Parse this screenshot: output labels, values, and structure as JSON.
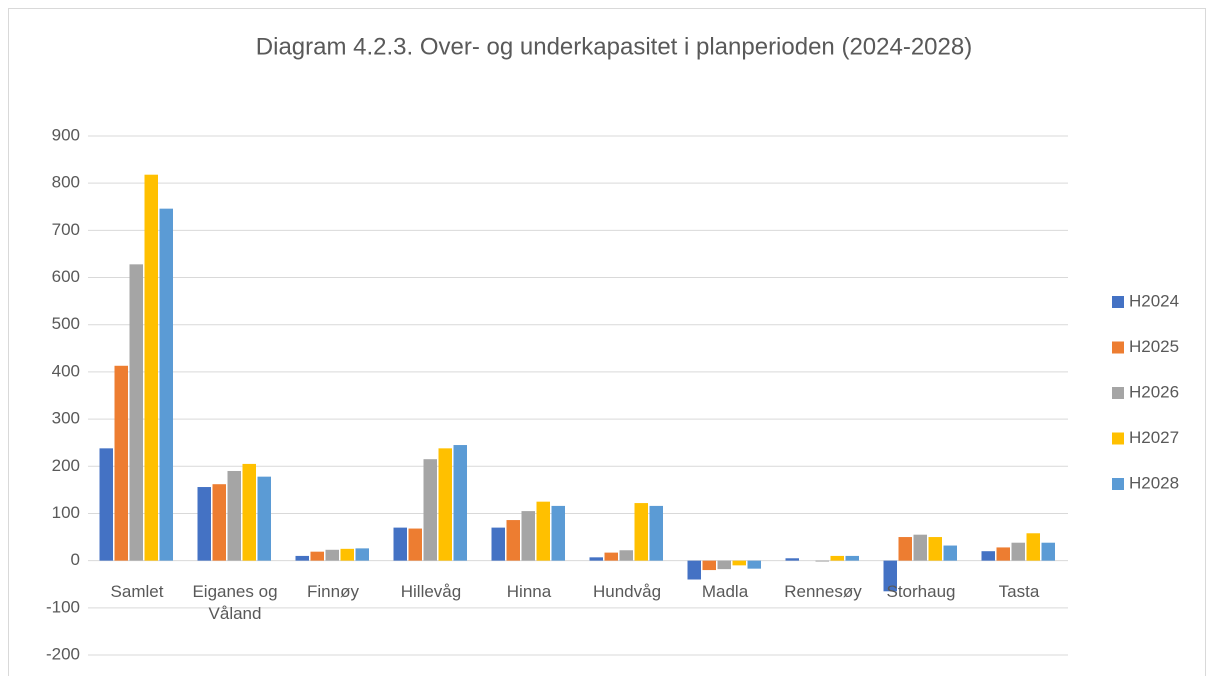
{
  "chart_data": {
    "type": "bar",
    "title": "Diagram 4.2.3. Over- og underkapasitet i planperioden (2024-2028)",
    "categories": [
      "Samlet",
      "Eiganes og Våland",
      "Finnøy",
      "Hillevåg",
      "Hinna",
      "Hundvåg",
      "Madla",
      "Rennesøy",
      "Storhaug",
      "Tasta"
    ],
    "series": [
      {
        "name": "H2024",
        "color": "#4472c4",
        "values": [
          238,
          156,
          10,
          70,
          70,
          7,
          -40,
          5,
          -65,
          20
        ]
      },
      {
        "name": "H2025",
        "color": "#ed7d31",
        "values": [
          413,
          162,
          19,
          68,
          86,
          17,
          -20,
          0,
          50,
          28
        ]
      },
      {
        "name": "H2026",
        "color": "#a5a5a5",
        "values": [
          628,
          190,
          23,
          215,
          105,
          22,
          -18,
          -2,
          55,
          38
        ]
      },
      {
        "name": "H2027",
        "color": "#ffc000",
        "values": [
          818,
          205,
          25,
          238,
          125,
          122,
          -10,
          10,
          50,
          58
        ]
      },
      {
        "name": "H2028",
        "color": "#5b9bd5",
        "values": [
          746,
          178,
          26,
          245,
          116,
          116,
          -17,
          10,
          32,
          38
        ]
      }
    ],
    "ylim": [
      -200,
      900
    ],
    "yticks": [
      -200,
      -100,
      0,
      100,
      200,
      300,
      400,
      500,
      600,
      700,
      800,
      900
    ],
    "grid": true,
    "legend": "right"
  }
}
